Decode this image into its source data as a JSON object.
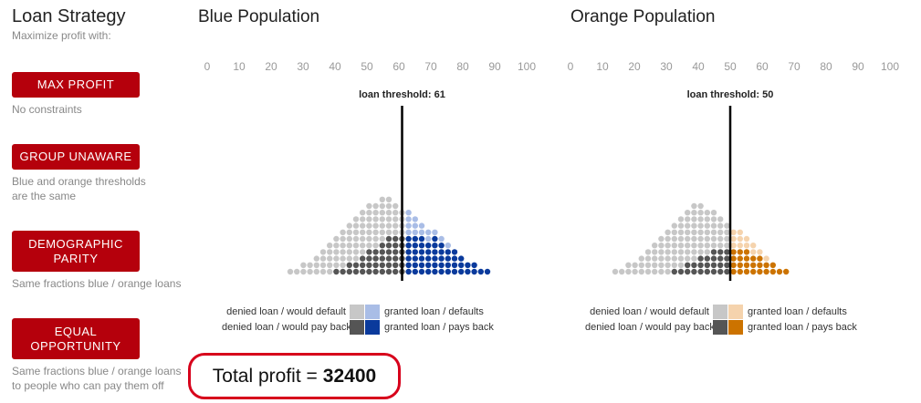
{
  "sidebar": {
    "title": "Loan Strategy",
    "subtitle": "Maximize profit with:",
    "strategies": [
      {
        "label": "MAX PROFIT",
        "description": "No constraints"
      },
      {
        "label": "GROUP UNAWARE",
        "description": "Blue and orange thresholds are the same"
      },
      {
        "label": "DEMOGRAPHIC PARITY",
        "description": "Same fractions blue / orange loans"
      },
      {
        "label": "EQUAL OPPORTUNITY",
        "description": "Same fractions blue / orange loans to people who can pay them off"
      }
    ]
  },
  "panels": [
    {
      "title": "Blue Population",
      "threshold_label": "loan threshold: 61",
      "threshold": 61,
      "axis_ticks": [
        "0",
        "10",
        "20",
        "30",
        "40",
        "50",
        "60",
        "70",
        "80",
        "90",
        "100"
      ],
      "colors": {
        "denied_default": "#c7c7c7",
        "denied_payback": "#555555",
        "granted_default": "#a9bde6",
        "granted_payback": "#0a3a9c"
      },
      "legend": {
        "denied_default": "denied loan / would default",
        "denied_payback": "denied loan / would pay back",
        "granted_default": "granted loan / defaults",
        "granted_payback": "granted loan / pays back"
      }
    },
    {
      "title": "Orange Population",
      "threshold_label": "loan threshold: 50",
      "threshold": 50,
      "axis_ticks": [
        "0",
        "10",
        "20",
        "30",
        "40",
        "50",
        "60",
        "70",
        "80",
        "90",
        "100"
      ],
      "colors": {
        "denied_default": "#c7c7c7",
        "denied_payback": "#555555",
        "granted_default": "#f5d3ad",
        "granted_payback": "#cc7300"
      },
      "legend": {
        "denied_default": "denied loan / would default",
        "denied_payback": "denied loan / would pay back",
        "granted_default": "granted loan / defaults",
        "granted_payback": "granted loan / pays back"
      }
    }
  ],
  "profit": {
    "label": "Total profit =",
    "value": "32400"
  }
}
